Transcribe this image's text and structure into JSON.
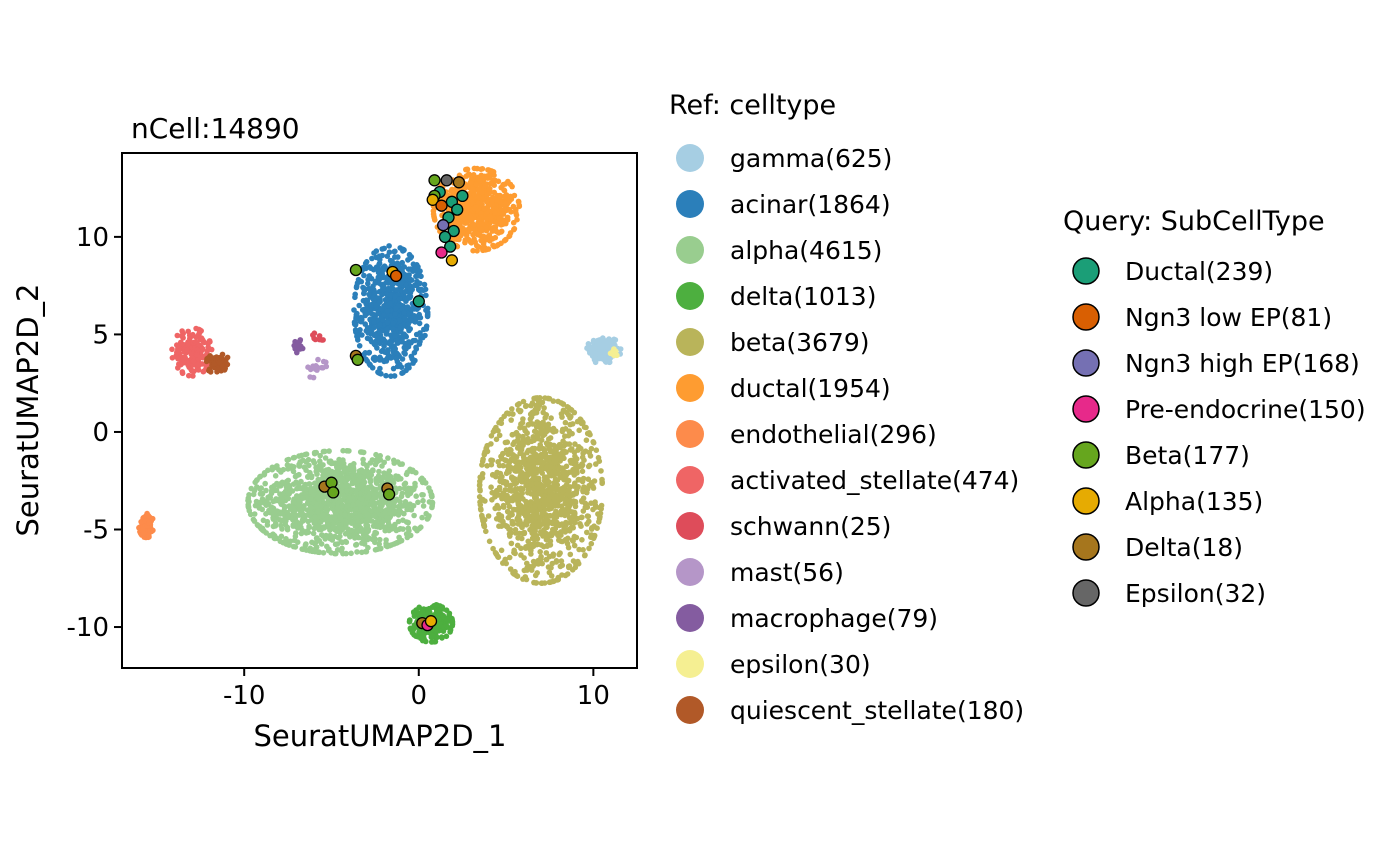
{
  "chart_data": {
    "type": "scatter",
    "title": "nCell:14890",
    "xlabel": "SeuratUMAP2D_1",
    "ylabel": "SeuratUMAP2D_2",
    "xlim": [
      -17,
      12.5
    ],
    "ylim": [
      -12.1,
      14.3
    ],
    "xticks": [
      -10,
      0,
      10
    ],
    "yticks": [
      -10,
      -5,
      0,
      5,
      10
    ],
    "grid": false,
    "ref_legend": {
      "title": "Ref: celltype",
      "items": [
        {
          "label": "gamma(625)",
          "color": "#a6cee3"
        },
        {
          "label": "acinar(1864)",
          "color": "#2b7fba"
        },
        {
          "label": "alpha(4615)",
          "color": "#99cd8f"
        },
        {
          "label": "delta(1013)",
          "color": "#4daf3f"
        },
        {
          "label": "beta(3679)",
          "color": "#b9b45a"
        },
        {
          "label": "ductal(1954)",
          "color": "#fe9c31"
        },
        {
          "label": "endothelial(296)",
          "color": "#fd8b4b"
        },
        {
          "label": "activated_stellate(474)",
          "color": "#ef6565"
        },
        {
          "label": "schwann(25)",
          "color": "#de4c5a"
        },
        {
          "label": "mast(56)",
          "color": "#b596c8"
        },
        {
          "label": "macrophage(79)",
          "color": "#845ca0"
        },
        {
          "label": "epsilon(30)",
          "color": "#f5ef92"
        },
        {
          "label": "quiescent_stellate(180)",
          "color": "#b15928"
        }
      ]
    },
    "query_legend": {
      "title": "Query: SubCellType",
      "items": [
        {
          "label": "Ductal(239)",
          "color": "#1b9e77"
        },
        {
          "label": "Ngn3 low EP(81)",
          "color": "#d95f02"
        },
        {
          "label": "Ngn3 high EP(168)",
          "color": "#7570b3"
        },
        {
          "label": "Pre-endocrine(150)",
          "color": "#e7298a"
        },
        {
          "label": "Beta(177)",
          "color": "#66a61e"
        },
        {
          "label": "Alpha(135)",
          "color": "#e6ab02"
        },
        {
          "label": "Delta(18)",
          "color": "#a6761d"
        },
        {
          "label": "Epsilon(32)",
          "color": "#666666"
        }
      ]
    },
    "clusters": [
      {
        "celltype": "gamma(625)",
        "center": [
          10.6,
          4.2
        ],
        "spread": [
          0.55,
          0.45
        ],
        "n": 160
      },
      {
        "celltype": "acinar(1864)",
        "center": [
          -1.6,
          6.2
        ],
        "spread": [
          1.2,
          1.9
        ],
        "n": 700
      },
      {
        "celltype": "alpha(4615)",
        "center": [
          -4.5,
          -3.6
        ],
        "spread": [
          3.0,
          1.5
        ],
        "n": 1400
      },
      {
        "celltype": "delta(1013)",
        "center": [
          0.7,
          -9.8
        ],
        "spread": [
          0.7,
          0.55
        ],
        "n": 280
      },
      {
        "celltype": "beta(3679)",
        "center": [
          7.0,
          -3.0
        ],
        "spread": [
          2.0,
          2.7
        ],
        "n": 1200
      },
      {
        "celltype": "ductal(1954)",
        "center": [
          3.3,
          11.4
        ],
        "spread": [
          1.4,
          1.2
        ],
        "n": 600
      },
      {
        "celltype": "endothelial(296)",
        "center": [
          -15.6,
          -4.8
        ],
        "spread": [
          0.25,
          0.35
        ],
        "n": 90
      },
      {
        "celltype": "activated_stellate(474)",
        "center": [
          -13.0,
          4.1
        ],
        "spread": [
          0.65,
          0.7
        ],
        "n": 170
      },
      {
        "celltype": "quiescent_stellate(180)",
        "center": [
          -11.5,
          3.5
        ],
        "spread": [
          0.4,
          0.3
        ],
        "n": 70
      },
      {
        "celltype": "macrophage(79)",
        "center": [
          -6.9,
          4.4
        ],
        "spread": [
          0.15,
          0.2
        ],
        "n": 22
      },
      {
        "celltype": "mast(56)",
        "center": [
          -6.0,
          3.4
        ],
        "spread": [
          0.4,
          0.35
        ],
        "n": 16
      },
      {
        "celltype": "epsilon(30)",
        "center": [
          11.1,
          4.0
        ],
        "spread": [
          0.15,
          0.15
        ],
        "n": 10
      },
      {
        "celltype": "schwann(25)",
        "center": [
          -5.8,
          4.9
        ],
        "spread": [
          0.25,
          0.15
        ],
        "n": 8
      }
    ],
    "query_points": [
      {
        "x": 0.9,
        "y": 12.9,
        "type": "Beta(177)"
      },
      {
        "x": 1.6,
        "y": 12.9,
        "type": "Epsilon(32)"
      },
      {
        "x": 2.3,
        "y": 12.8,
        "type": "Delta(18)"
      },
      {
        "x": 1.2,
        "y": 12.3,
        "type": "Ductal(239)"
      },
      {
        "x": 0.9,
        "y": 12.1,
        "type": "Beta(177)"
      },
      {
        "x": 2.5,
        "y": 12.1,
        "type": "Ductal(239)"
      },
      {
        "x": 0.8,
        "y": 11.9,
        "type": "Alpha(135)"
      },
      {
        "x": 1.9,
        "y": 11.8,
        "type": "Ductal(239)"
      },
      {
        "x": 1.3,
        "y": 11.6,
        "type": "Ngn3 low EP(81)"
      },
      {
        "x": 2.2,
        "y": 11.4,
        "type": "Ductal(239)"
      },
      {
        "x": 1.7,
        "y": 11.0,
        "type": "Ductal(239)"
      },
      {
        "x": 1.4,
        "y": 10.6,
        "type": "Ngn3 high EP(168)"
      },
      {
        "x": 2.0,
        "y": 10.3,
        "type": "Ductal(239)"
      },
      {
        "x": 1.5,
        "y": 10.0,
        "type": "Ductal(239)"
      },
      {
        "x": 1.8,
        "y": 9.5,
        "type": "Ductal(239)"
      },
      {
        "x": 1.3,
        "y": 9.2,
        "type": "Pre-endocrine(150)"
      },
      {
        "x": 1.9,
        "y": 8.8,
        "type": "Alpha(135)"
      },
      {
        "x": -3.6,
        "y": 8.3,
        "type": "Beta(177)"
      },
      {
        "x": -1.5,
        "y": 8.2,
        "type": "Alpha(135)"
      },
      {
        "x": -1.3,
        "y": 8.0,
        "type": "Ngn3 low EP(81)"
      },
      {
        "x": 0.0,
        "y": 6.7,
        "type": "Ductal(239)"
      },
      {
        "x": -3.6,
        "y": 3.9,
        "type": "Delta(18)"
      },
      {
        "x": -3.5,
        "y": 3.7,
        "type": "Beta(177)"
      },
      {
        "x": -5.4,
        "y": -2.8,
        "type": "Delta(18)"
      },
      {
        "x": -5.0,
        "y": -2.6,
        "type": "Beta(177)"
      },
      {
        "x": -4.9,
        "y": -3.1,
        "type": "Beta(177)"
      },
      {
        "x": -1.8,
        "y": -2.9,
        "type": "Delta(18)"
      },
      {
        "x": -1.7,
        "y": -3.2,
        "type": "Beta(177)"
      },
      {
        "x": 0.2,
        "y": -9.8,
        "type": "Delta(18)"
      },
      {
        "x": 0.5,
        "y": -9.9,
        "type": "Pre-endocrine(150)"
      },
      {
        "x": 0.7,
        "y": -9.7,
        "type": "Alpha(135)"
      }
    ]
  }
}
